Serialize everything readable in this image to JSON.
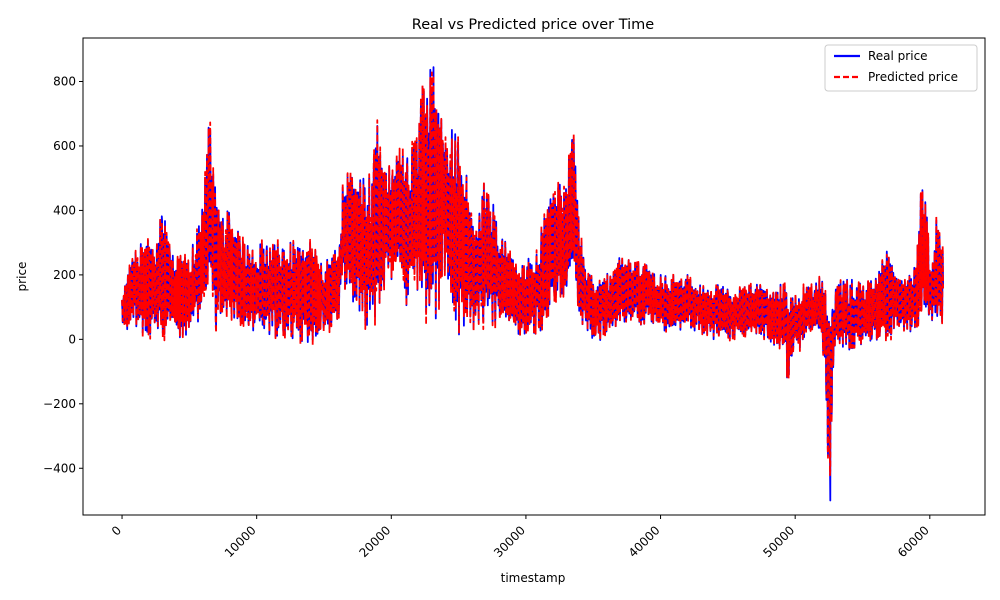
{
  "chart_data": {
    "type": "line",
    "title": "Real vs Predicted price over Time",
    "xlabel": "timestamp",
    "ylabel": "price",
    "xlim": [
      -2900,
      64100
    ],
    "ylim": [
      -545,
      935
    ],
    "x_ticks": [
      0,
      10000,
      20000,
      30000,
      40000,
      50000,
      60000
    ],
    "x_tick_labels": [
      "0",
      "10000",
      "20000",
      "30000",
      "40000",
      "50000",
      "60000"
    ],
    "y_ticks": [
      -400,
      -200,
      0,
      200,
      400,
      600,
      800
    ],
    "y_tick_labels": [
      "−400",
      "−200",
      "0",
      "200",
      "400",
      "600",
      "800"
    ],
    "grid": false,
    "legend_position": "upper right",
    "series": [
      {
        "name": "Real price",
        "color": "#0000ff",
        "style": "solid"
      },
      {
        "name": "Predicted price",
        "color": "#ff0000",
        "style": "dashed"
      }
    ],
    "envelope": {
      "x": [
        0,
        500,
        1500,
        2500,
        3000,
        4000,
        5000,
        6000,
        6500,
        7000,
        8000,
        9000,
        10000,
        11000,
        12000,
        13000,
        14000,
        15000,
        16000,
        16500,
        17500,
        18500,
        19000,
        19500,
        20500,
        21000,
        22000,
        22500,
        23000,
        23500,
        24000,
        24500,
        25000,
        25500,
        26000,
        27000,
        28000,
        29000,
        30000,
        31000,
        32000,
        33000,
        33500,
        34000,
        35000,
        36000,
        37000,
        38000,
        39000,
        40000,
        41000,
        42000,
        43000,
        44000,
        45000,
        46000,
        47000,
        48000,
        49000,
        49500,
        50000,
        51000,
        52000,
        52600,
        53000,
        54000,
        55000,
        56000,
        57000,
        57500,
        58000,
        59000,
        59500,
        60000,
        60500,
        61000
      ],
      "high": [
        150,
        250,
        320,
        300,
        410,
        260,
        250,
        420,
        710,
        440,
        390,
        300,
        300,
        290,
        300,
        300,
        300,
        230,
        300,
        520,
        490,
        510,
        690,
        520,
        570,
        570,
        630,
        870,
        880,
        750,
        640,
        650,
        650,
        570,
        350,
        510,
        350,
        260,
        240,
        310,
        500,
        500,
        680,
        330,
        180,
        200,
        270,
        240,
        230,
        200,
        200,
        200,
        170,
        170,
        165,
        160,
        170,
        170,
        170,
        160,
        150,
        170,
        200,
        180,
        180,
        190,
        170,
        200,
        290,
        200,
        180,
        240,
        560,
        240,
        400,
        270
      ],
      "low": [
        0,
        40,
        20,
        10,
        20,
        0,
        10,
        80,
        200,
        0,
        60,
        20,
        30,
        10,
        10,
        0,
        -15,
        10,
        60,
        150,
        100,
        20,
        100,
        150,
        200,
        100,
        150,
        70,
        10,
        100,
        200,
        100,
        0,
        50,
        30,
        50,
        30,
        20,
        10,
        20,
        100,
        150,
        200,
        60,
        -5,
        0,
        60,
        40,
        50,
        30,
        20,
        40,
        10,
        0,
        0,
        10,
        20,
        0,
        -40,
        -140,
        -40,
        0,
        20,
        -500,
        20,
        -60,
        -10,
        0,
        -20,
        50,
        30,
        20,
        10,
        50,
        0,
        20
      ]
    }
  }
}
